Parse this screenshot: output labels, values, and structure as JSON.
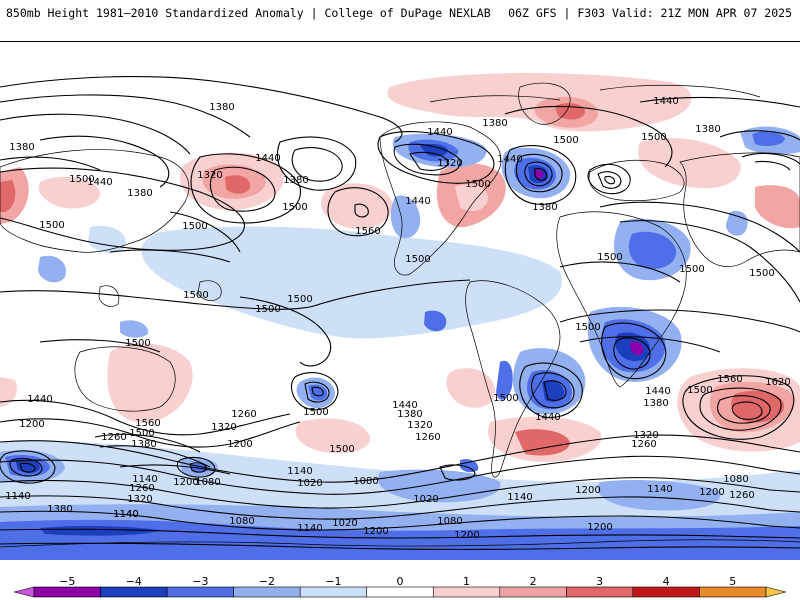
{
  "header": {
    "title_left": "850mb Height 1981–2010 Standardized Anomaly | College of DuPage NEXLAB",
    "title_right": "06Z GFS | F303 Valid: 21Z MON APR 07 2025"
  },
  "map": {
    "background": "#ffffff",
    "land_outline_color": "#000000",
    "contour_color": "#000000",
    "contour_labels": [
      "1380",
      "1320",
      "1440",
      "1500",
      "1560",
      "1200",
      "1260",
      "1140",
      "1080",
      "1020",
      "1620"
    ]
  },
  "colorbar": {
    "ticks": [
      "−5",
      "−4",
      "−3",
      "−2",
      "−1",
      "0",
      "1",
      "2",
      "3",
      "4",
      "5"
    ],
    "colors": [
      "#c856dc",
      "#8b00a8",
      "#1c3fbe",
      "#4f6fe8",
      "#93b1f0",
      "#cde0f8",
      "#ffffff",
      "#f9d0d0",
      "#f1a6a4",
      "#e06868",
      "#c01818",
      "#e88a2a",
      "#f5c44a"
    ]
  }
}
